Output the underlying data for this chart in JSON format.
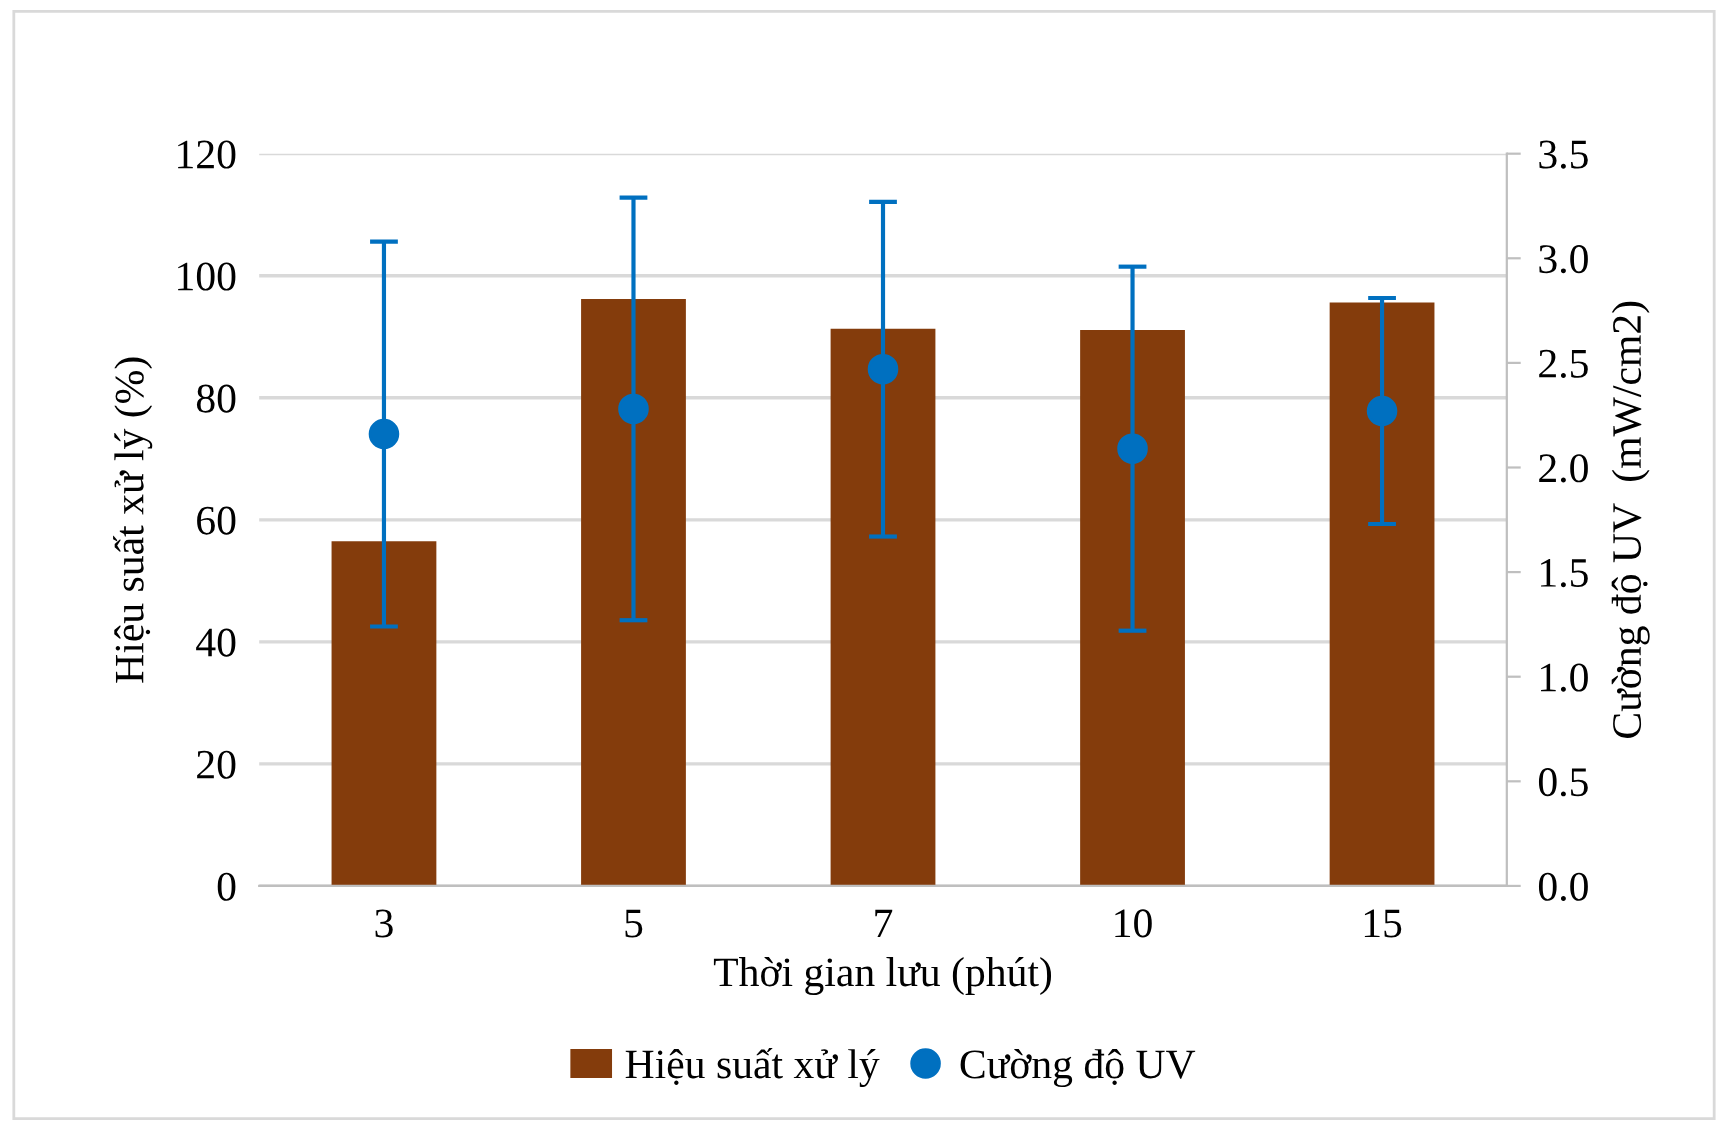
{
  "chart_data": {
    "type": "bar",
    "xlabel": "Thời gian lưu (phút)",
    "ylabel": "Hiệu suất xử lý (%)",
    "y2label": "Cường độ UV  (mW/cm2)",
    "categories": [
      "3",
      "5",
      "7",
      "10",
      "15"
    ],
    "series": [
      {
        "name": "Hiệu suất xử lý",
        "color": "#843c0c",
        "values": [
          56.5,
          96.2,
          91.3,
          91.1,
          95.6
        ]
      },
      {
        "name": "Cường độ UV",
        "type": "scatter",
        "axis": "y2",
        "color": "#0070c0",
        "marker": "circle",
        "values": [
          2.16,
          2.28,
          2.47,
          2.09,
          2.27
        ],
        "errors": [
          0.92,
          1.01,
          0.8,
          0.87,
          0.54
        ]
      }
    ],
    "ylim": [
      0,
      120
    ],
    "yticks": [
      0,
      20,
      40,
      60,
      80,
      100,
      120
    ],
    "y2lim": [
      0,
      3.5
    ],
    "y2ticks": [
      {
        "value": 0,
        "label": "0.0"
      },
      {
        "value": 0.5,
        "label": "0.5"
      },
      {
        "value": 1,
        "label": "1.0"
      },
      {
        "value": 1.5,
        "label": "1.5"
      },
      {
        "value": 2,
        "label": "2.0"
      },
      {
        "value": 2.5,
        "label": "2.5"
      },
      {
        "value": 3,
        "label": "3.0"
      },
      {
        "value": 3.5,
        "label": "3.5"
      }
    ],
    "grid": "y",
    "legend": "bottom"
  }
}
